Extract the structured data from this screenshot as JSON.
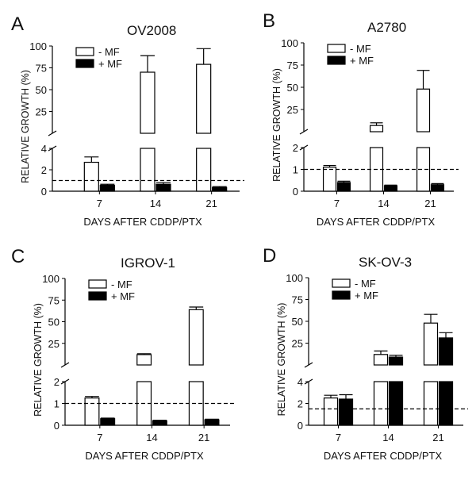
{
  "chart_data": [
    {
      "type": "bar",
      "panel_label": "A",
      "title": "OV2008",
      "xlabel": "DAYS AFTER CDDP/PTX",
      "ylabel": "RELATIVE GROWTH (%)",
      "categories": [
        "7",
        "14",
        "21"
      ],
      "axis": {
        "break": true,
        "lower": {
          "ylim": [
            0,
            4
          ],
          "ticks": [
            "0",
            "2",
            "4"
          ]
        },
        "upper": {
          "ylim": [
            0,
            100
          ],
          "ticks": [
            "25",
            "50",
            "75",
            "100"
          ]
        }
      },
      "reference_line": 1,
      "legend": [
        "-  MF",
        "+ MF"
      ],
      "legend_position": "top-left",
      "series": [
        {
          "name": "-  MF",
          "fill": "#ffffff",
          "values": [
            2.7,
            70,
            79
          ],
          "errors": [
            0.5,
            19,
            18
          ]
        },
        {
          "name": "+ MF",
          "fill": "#000000",
          "values": [
            0.55,
            0.65,
            0.35
          ],
          "errors": [
            0.1,
            0.15,
            0.08
          ]
        }
      ]
    },
    {
      "type": "bar",
      "panel_label": "B",
      "title": "A2780",
      "xlabel": "DAYS AFTER CDDP/PTX",
      "ylabel": "RELATIVE GROWTH (%)",
      "categories": [
        "7",
        "14",
        "21"
      ],
      "axis": {
        "break": true,
        "lower": {
          "ylim": [
            0,
            2
          ],
          "ticks": [
            "0",
            "1",
            "2"
          ]
        },
        "upper": {
          "ylim": [
            0,
            100
          ],
          "ticks": [
            "25",
            "50",
            "75",
            "100"
          ]
        }
      },
      "reference_line": 1,
      "legend": [
        "-  MF",
        "+ MF"
      ],
      "legend_position": "top-left",
      "series": [
        {
          "name": "-  MF",
          "fill": "#ffffff",
          "values": [
            1.1,
            7,
            48
          ],
          "errors": [
            0.08,
            3,
            21
          ]
        },
        {
          "name": "+ MF",
          "fill": "#000000",
          "values": [
            0.4,
            0.25,
            0.3
          ],
          "errors": [
            0.06,
            0.03,
            0.05
          ]
        }
      ]
    },
    {
      "type": "bar",
      "panel_label": "C",
      "title": "IGROV-1",
      "xlabel": "DAYS AFTER CDDP/PTX",
      "ylabel": "RELATIVE GROWTH (%)",
      "categories": [
        "7",
        "14",
        "21"
      ],
      "axis": {
        "break": true,
        "lower": {
          "ylim": [
            0,
            2
          ],
          "ticks": [
            "0",
            "1",
            "2"
          ]
        },
        "upper": {
          "ylim": [
            0,
            100
          ],
          "ticks": [
            "25",
            "50",
            "75",
            "100"
          ]
        }
      },
      "reference_line": 1,
      "legend": [
        "-  MF",
        "+ MF"
      ],
      "legend_position": "top-left",
      "series": [
        {
          "name": "-  MF",
          "fill": "#ffffff",
          "values": [
            1.25,
            12,
            64
          ],
          "errors": [
            0.07,
            1,
            3
          ]
        },
        {
          "name": "+ MF",
          "fill": "#000000",
          "values": [
            0.3,
            0.2,
            0.25
          ],
          "errors": [
            0.03,
            0.03,
            0.03
          ]
        }
      ]
    },
    {
      "type": "bar",
      "panel_label": "D",
      "title": "SK-OV-3",
      "xlabel": "DAYS AFTER CDDP/PTX",
      "ylabel": "RELATIVE GROWTH (%)",
      "categories": [
        "7",
        "14",
        "21"
      ],
      "axis": {
        "break": true,
        "lower": {
          "ylim": [
            0,
            4
          ],
          "ticks": [
            "0",
            "2",
            "4"
          ]
        },
        "upper": {
          "ylim": [
            0,
            100
          ],
          "ticks": [
            "25",
            "50",
            "75",
            "100"
          ]
        }
      },
      "reference_line": 1.5,
      "legend": [
        "-  MF",
        "+ MF"
      ],
      "legend_position": "top-left",
      "series": [
        {
          "name": "-  MF",
          "fill": "#ffffff",
          "values": [
            2.5,
            12,
            48
          ],
          "errors": [
            0.25,
            4,
            10
          ]
        },
        {
          "name": "+ MF",
          "fill": "#000000",
          "values": [
            2.4,
            9,
            31
          ],
          "errors": [
            0.4,
            2,
            6
          ]
        }
      ]
    }
  ]
}
